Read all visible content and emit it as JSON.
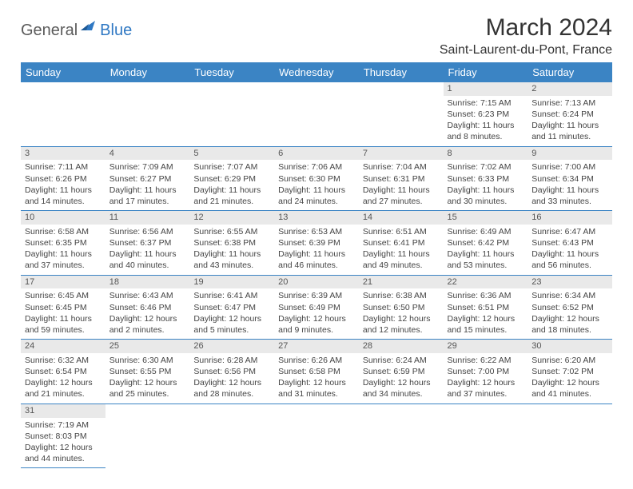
{
  "logo": {
    "general": "General",
    "blue": "Blue"
  },
  "title": "March 2024",
  "location": "Saint-Laurent-du-Pont, France",
  "colors": {
    "header_bg": "#3b84c4",
    "header_text": "#ffffff",
    "daynum_bg": "#e9e9e9",
    "cell_border": "#3b84c4",
    "logo_gray": "#5b5b5b",
    "logo_blue": "#2f78c3"
  },
  "weekdays": [
    "Sunday",
    "Monday",
    "Tuesday",
    "Wednesday",
    "Thursday",
    "Friday",
    "Saturday"
  ],
  "weeks": [
    [
      null,
      null,
      null,
      null,
      null,
      {
        "d": "1",
        "sr": "7:15 AM",
        "ss": "6:23 PM",
        "dl": "11 hours and 8 minutes."
      },
      {
        "d": "2",
        "sr": "7:13 AM",
        "ss": "6:24 PM",
        "dl": "11 hours and 11 minutes."
      }
    ],
    [
      {
        "d": "3",
        "sr": "7:11 AM",
        "ss": "6:26 PM",
        "dl": "11 hours and 14 minutes."
      },
      {
        "d": "4",
        "sr": "7:09 AM",
        "ss": "6:27 PM",
        "dl": "11 hours and 17 minutes."
      },
      {
        "d": "5",
        "sr": "7:07 AM",
        "ss": "6:29 PM",
        "dl": "11 hours and 21 minutes."
      },
      {
        "d": "6",
        "sr": "7:06 AM",
        "ss": "6:30 PM",
        "dl": "11 hours and 24 minutes."
      },
      {
        "d": "7",
        "sr": "7:04 AM",
        "ss": "6:31 PM",
        "dl": "11 hours and 27 minutes."
      },
      {
        "d": "8",
        "sr": "7:02 AM",
        "ss": "6:33 PM",
        "dl": "11 hours and 30 minutes."
      },
      {
        "d": "9",
        "sr": "7:00 AM",
        "ss": "6:34 PM",
        "dl": "11 hours and 33 minutes."
      }
    ],
    [
      {
        "d": "10",
        "sr": "6:58 AM",
        "ss": "6:35 PM",
        "dl": "11 hours and 37 minutes."
      },
      {
        "d": "11",
        "sr": "6:56 AM",
        "ss": "6:37 PM",
        "dl": "11 hours and 40 minutes."
      },
      {
        "d": "12",
        "sr": "6:55 AM",
        "ss": "6:38 PM",
        "dl": "11 hours and 43 minutes."
      },
      {
        "d": "13",
        "sr": "6:53 AM",
        "ss": "6:39 PM",
        "dl": "11 hours and 46 minutes."
      },
      {
        "d": "14",
        "sr": "6:51 AM",
        "ss": "6:41 PM",
        "dl": "11 hours and 49 minutes."
      },
      {
        "d": "15",
        "sr": "6:49 AM",
        "ss": "6:42 PM",
        "dl": "11 hours and 53 minutes."
      },
      {
        "d": "16",
        "sr": "6:47 AM",
        "ss": "6:43 PM",
        "dl": "11 hours and 56 minutes."
      }
    ],
    [
      {
        "d": "17",
        "sr": "6:45 AM",
        "ss": "6:45 PM",
        "dl": "11 hours and 59 minutes."
      },
      {
        "d": "18",
        "sr": "6:43 AM",
        "ss": "6:46 PM",
        "dl": "12 hours and 2 minutes."
      },
      {
        "d": "19",
        "sr": "6:41 AM",
        "ss": "6:47 PM",
        "dl": "12 hours and 5 minutes."
      },
      {
        "d": "20",
        "sr": "6:39 AM",
        "ss": "6:49 PM",
        "dl": "12 hours and 9 minutes."
      },
      {
        "d": "21",
        "sr": "6:38 AM",
        "ss": "6:50 PM",
        "dl": "12 hours and 12 minutes."
      },
      {
        "d": "22",
        "sr": "6:36 AM",
        "ss": "6:51 PM",
        "dl": "12 hours and 15 minutes."
      },
      {
        "d": "23",
        "sr": "6:34 AM",
        "ss": "6:52 PM",
        "dl": "12 hours and 18 minutes."
      }
    ],
    [
      {
        "d": "24",
        "sr": "6:32 AM",
        "ss": "6:54 PM",
        "dl": "12 hours and 21 minutes."
      },
      {
        "d": "25",
        "sr": "6:30 AM",
        "ss": "6:55 PM",
        "dl": "12 hours and 25 minutes."
      },
      {
        "d": "26",
        "sr": "6:28 AM",
        "ss": "6:56 PM",
        "dl": "12 hours and 28 minutes."
      },
      {
        "d": "27",
        "sr": "6:26 AM",
        "ss": "6:58 PM",
        "dl": "12 hours and 31 minutes."
      },
      {
        "d": "28",
        "sr": "6:24 AM",
        "ss": "6:59 PM",
        "dl": "12 hours and 34 minutes."
      },
      {
        "d": "29",
        "sr": "6:22 AM",
        "ss": "7:00 PM",
        "dl": "12 hours and 37 minutes."
      },
      {
        "d": "30",
        "sr": "6:20 AM",
        "ss": "7:02 PM",
        "dl": "12 hours and 41 minutes."
      }
    ],
    [
      {
        "d": "31",
        "sr": "7:19 AM",
        "ss": "8:03 PM",
        "dl": "12 hours and 44 minutes."
      },
      null,
      null,
      null,
      null,
      null,
      null
    ]
  ],
  "labels": {
    "sunrise": "Sunrise: ",
    "sunset": "Sunset: ",
    "daylight": "Daylight: "
  }
}
